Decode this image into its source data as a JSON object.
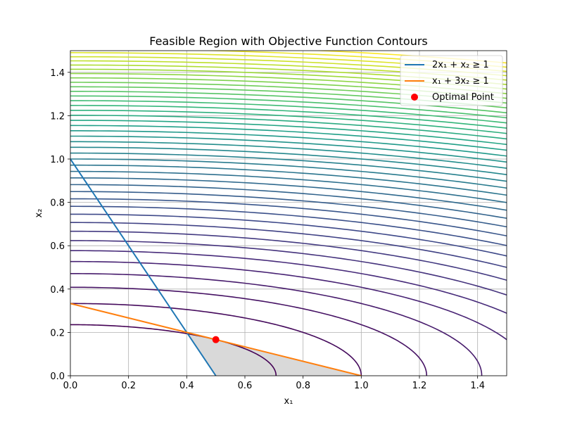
{
  "chart_data": {
    "type": "line",
    "title": "Feasible Region with Objective Function Contours",
    "xlabel": "x₁",
    "ylabel": "x₂",
    "xlim": [
      0,
      1.5
    ],
    "ylim": [
      0,
      1.5
    ],
    "x_ticks": [
      "0.0",
      "0.2",
      "0.4",
      "0.6",
      "0.8",
      "1.0",
      "1.2",
      "1.4"
    ],
    "y_ticks": [
      "0.0",
      "0.2",
      "0.4",
      "0.6",
      "0.8",
      "1.0",
      "1.2",
      "1.4"
    ],
    "grid": true,
    "legend_position": "top-right",
    "series": [
      {
        "name": "2x₁ + x₂ ≥ 1",
        "color": "#1f77b4",
        "x": [
          0.0,
          0.5
        ],
        "y": [
          1.0,
          0.0
        ]
      },
      {
        "name": "x₁ + 3x₂ ≥ 1",
        "color": "#ff7f0e",
        "x": [
          0.0,
          1.0
        ],
        "y": [
          0.3333,
          0.0
        ]
      }
    ],
    "points": [
      {
        "name": "Optimal Point",
        "x": 0.5,
        "y": 0.1667,
        "color": "#ff0000"
      }
    ],
    "feasible_region": {
      "color": "#d9d9d9",
      "vertices": [
        [
          0.4,
          0.2
        ],
        [
          1.0,
          0.0
        ],
        [
          0.5,
          0.0
        ]
      ]
    },
    "contours": {
      "function": "x1^2 + 9*x2^2",
      "levels": [
        0.5,
        1.0,
        1.5,
        2.0,
        2.5,
        3.0,
        3.5,
        4.0,
        4.5,
        5.0,
        5.5,
        6.0,
        6.5,
        7.0,
        7.5,
        8.0,
        8.5,
        9.0,
        9.5,
        10.0,
        10.5,
        11.0,
        11.5,
        12.0,
        12.5,
        13.0,
        13.5,
        14.0,
        14.5,
        15.0,
        15.5,
        16.0,
        16.5,
        17.0,
        17.5,
        18.0,
        18.5,
        19.0,
        19.5,
        20.0,
        20.5,
        21.0
      ],
      "colormap": "viridis"
    }
  }
}
